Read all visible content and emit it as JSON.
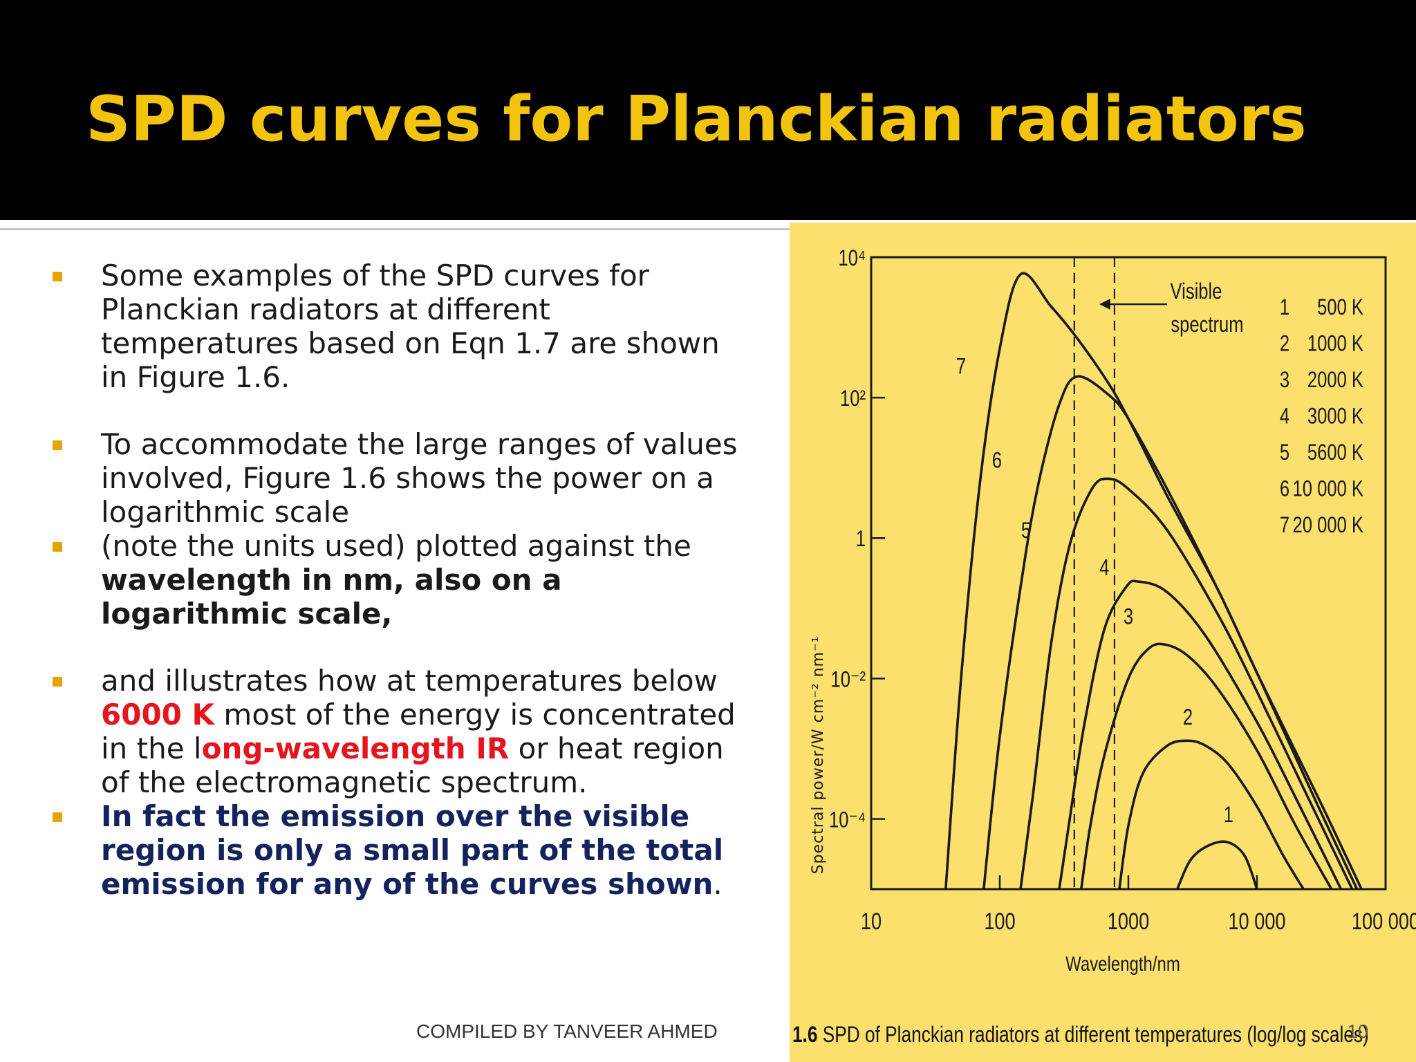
{
  "slide": {
    "title": "SPD curves for Planckian radiators",
    "footer": "COMPILED BY TANVEER AHMED",
    "page_number": "10"
  },
  "bullets": [
    {
      "text": "Some examples of the SPD curves for Planckian radiators at different temperatures based on Eqn 1.7 are shown in Figure 1.6."
    },
    {
      "text": " To accommodate the large ranges of values involved, Figure 1.6 shows the power on a logarithmic scale"
    },
    {
      "normal": " (note the units used) plotted against the ",
      "bold": "wavelength in nm, also on a logarithmic scale,"
    },
    {
      "p1": " and illustrates how at temperatures below ",
      "red1": "6000 K",
      "p2": " most of the energy is concentrated in the l",
      "red2": "ong-wavelength IR",
      "p3": " or heat region of the electromagnetic spectrum."
    },
    {
      "blue": " In fact the emission over the visible region is only a small part of the total emission for any of the curves shown",
      "tail": "."
    }
  ],
  "figure_caption": {
    "number": "1.6",
    "text": " SPD of Planckian radiators at different temperatures (log/log scales)"
  },
  "colors": {
    "title": "#f2c40f",
    "bullet_mark": "#e7a400",
    "highlight_red": "#e4161d",
    "highlight_navy": "#14235e",
    "figure_background": "#fbe06e",
    "curve": "#1a1a1a"
  },
  "chart_data": {
    "type": "line",
    "xlabel": "Wavelength/nm",
    "ylabel": "Spectral power/W cm⁻² nm⁻¹",
    "x_scale": "log",
    "y_scale": "log",
    "xlim": [
      10,
      100000
    ],
    "ylim": [
      1e-05,
      10000
    ],
    "x_ticks": [
      {
        "value": 10,
        "label": "10"
      },
      {
        "value": 100,
        "label": "100"
      },
      {
        "value": 1000,
        "label": "1000"
      },
      {
        "value": 10000,
        "label": "10 000"
      },
      {
        "value": 100000,
        "label": "100 000"
      }
    ],
    "y_ticks": [
      {
        "value": 10000,
        "label": "10⁴"
      },
      {
        "value": 100,
        "label": "10²"
      },
      {
        "value": 1,
        "label": "1"
      },
      {
        "value": 0.01,
        "label": "10⁻²"
      },
      {
        "value": 0.0001,
        "label": "10⁻⁴"
      }
    ],
    "visible_spectrum": {
      "range_nm": [
        380,
        780
      ],
      "label_line1": "Visible",
      "label_line2": "spectrum"
    },
    "legend": [
      {
        "id": "1",
        "label": "500 K"
      },
      {
        "id": "2",
        "label": "1000 K"
      },
      {
        "id": "3",
        "label": "2000 K"
      },
      {
        "id": "4",
        "label": "3000 K"
      },
      {
        "id": "5",
        "label": "5600 K"
      },
      {
        "id": "6",
        "label": "10 000 K"
      },
      {
        "id": "7",
        "label": "20 000 K"
      }
    ],
    "series": [
      {
        "name": "1",
        "label_at": [
          6000,
          9e-05
        ],
        "x": [
          2400,
          3000,
          4000,
          5800,
          8000,
          10000
        ],
        "y": [
          1e-05,
          2.5e-05,
          4e-05,
          4.7e-05,
          3e-05,
          1e-05
        ]
      },
      {
        "name": "2",
        "label_at": [
          2900,
          0.0022
        ],
        "x": [
          850,
          1000,
          1300,
          2000,
          2900,
          4000,
          6000,
          10000,
          16000,
          23000
        ],
        "y": [
          1e-05,
          8e-05,
          0.00045,
          0.0011,
          0.0013,
          0.0011,
          0.0006,
          0.00015,
          3e-05,
          1e-05
        ]
      },
      {
        "name": "3",
        "label_at": [
          1000,
          0.06
        ],
        "x": [
          430,
          500,
          650,
          1000,
          1450,
          2000,
          3000,
          5000,
          10000,
          20000,
          38000
        ],
        "y": [
          1e-05,
          7e-05,
          0.0008,
          0.01,
          0.027,
          0.03,
          0.02,
          0.007,
          0.00095,
          8e-05,
          1e-05
        ]
      },
      {
        "name": "4",
        "label_at": [
          650,
          0.3
        ],
        "x": [
          290,
          350,
          450,
          650,
          960,
          1200,
          2000,
          4000,
          10000,
          20000,
          45000
        ],
        "y": [
          1e-05,
          0.0001,
          0.002,
          0.05,
          0.2,
          0.24,
          0.17,
          0.04,
          0.0024,
          0.0002,
          1e-05
        ]
      },
      {
        "name": "5",
        "label_at": [
          160,
          1
        ],
        "x": [
          145,
          180,
          250,
          350,
          520,
          700,
          1000,
          2000,
          5000,
          10000,
          25000,
          55000
        ],
        "y": [
          1e-05,
          0.0002,
          0.03,
          0.8,
          5,
          7,
          5,
          1.3,
          0.08,
          0.0065,
          0.0002,
          1e-05
        ]
      },
      {
        "name": "6",
        "label_at": [
          95,
          10
        ],
        "x": [
          75,
          100,
          150,
          200,
          290,
          400,
          700,
          1000,
          2000,
          5000,
          10000,
          30000,
          60000
        ],
        "y": [
          1e-05,
          0.0015,
          0.3,
          6,
          80,
          200,
          110,
          50,
          5,
          0.18,
          0.012,
          0.00015,
          1e-05
        ]
      },
      {
        "name": "7",
        "label_at": [
          50,
          220
        ],
        "x": [
          38,
          50,
          70,
          100,
          145,
          250,
          400,
          700,
          1000,
          2000,
          5000,
          10000,
          30000,
          65000
        ],
        "y": [
          1e-05,
          0.01,
          6,
          500,
          5700,
          2000,
          700,
          160,
          50,
          4,
          0.18,
          0.012,
          0.0002,
          1e-05
        ]
      }
    ]
  }
}
